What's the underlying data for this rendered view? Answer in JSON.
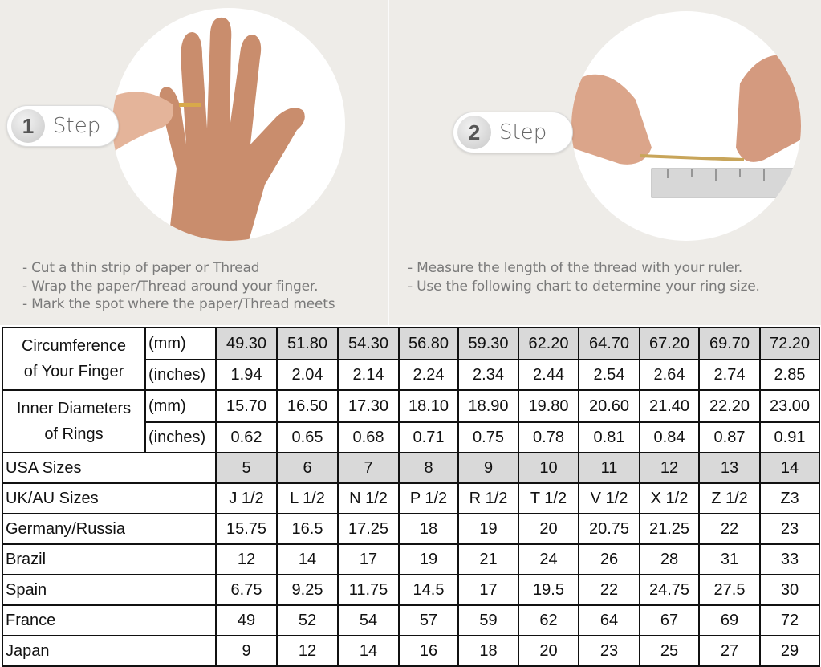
{
  "step1": {
    "number": "1",
    "label": "Step",
    "instructions": [
      "- Cut a thin strip of paper or Thread",
      "- Wrap the paper/Thread around your finger.",
      "- Mark the spot where the paper/Thread meets"
    ]
  },
  "step2": {
    "number": "2",
    "label": "Step",
    "instructions": [
      "- Measure the length of the thread with your ruler.",
      "- Use the following chart to determine your ring size."
    ]
  },
  "colors": {
    "shaded_cell": "#d9d9d9",
    "background": "#eeece8",
    "border": "#111111"
  },
  "table": {
    "circumference": {
      "label_line1": "Circumference",
      "label_line2": "of Your Finger",
      "unit_mm": "(mm)",
      "unit_in": "(inches)",
      "mm": [
        "49.30",
        "51.80",
        "54.30",
        "56.80",
        "59.30",
        "62.20",
        "64.70",
        "67.20",
        "69.70",
        "72.20"
      ],
      "in": [
        "1.94",
        "2.04",
        "2.14",
        "2.24",
        "2.34",
        "2.44",
        "2.54",
        "2.64",
        "2.74",
        "2.85"
      ]
    },
    "inner_diameter": {
      "label_line1": "Inner Diameters",
      "label_line2": "of Rings",
      "unit_mm": "(mm)",
      "unit_in": "(inches)",
      "mm": [
        "15.70",
        "16.50",
        "17.30",
        "18.10",
        "18.90",
        "19.80",
        "20.60",
        "21.40",
        "22.20",
        "23.00"
      ],
      "in": [
        "0.62",
        "0.65",
        "0.68",
        "0.71",
        "0.75",
        "0.78",
        "0.81",
        "0.84",
        "0.87",
        "0.91"
      ]
    },
    "rows": [
      {
        "label": "USA Sizes",
        "shaded": true,
        "values": [
          "5",
          "6",
          "7",
          "8",
          "9",
          "10",
          "11",
          "12",
          "13",
          "14"
        ]
      },
      {
        "label": "UK/AU Sizes",
        "values": [
          "J 1/2",
          "L 1/2",
          "N 1/2",
          "P 1/2",
          "R 1/2",
          "T 1/2",
          "V 1/2",
          "X 1/2",
          "Z 1/2",
          "Z3"
        ]
      },
      {
        "label": "Germany/Russia",
        "values": [
          "15.75",
          "16.5",
          "17.25",
          "18",
          "19",
          "20",
          "20.75",
          "21.25",
          "22",
          "23"
        ]
      },
      {
        "label": "Brazil",
        "values": [
          "12",
          "14",
          "17",
          "19",
          "21",
          "24",
          "26",
          "28",
          "31",
          "33"
        ]
      },
      {
        "label": "Spain",
        "values": [
          "6.75",
          "9.25",
          "11.75",
          "14.5",
          "17",
          "19.5",
          "22",
          "24.75",
          "27.5",
          "30"
        ]
      },
      {
        "label": "France",
        "values": [
          "49",
          "52",
          "54",
          "57",
          "59",
          "62",
          "64",
          "67",
          "69",
          "72"
        ]
      },
      {
        "label": "Japan",
        "values": [
          "9",
          "12",
          "14",
          "16",
          "18",
          "20",
          "23",
          "25",
          "27",
          "29"
        ]
      }
    ]
  }
}
